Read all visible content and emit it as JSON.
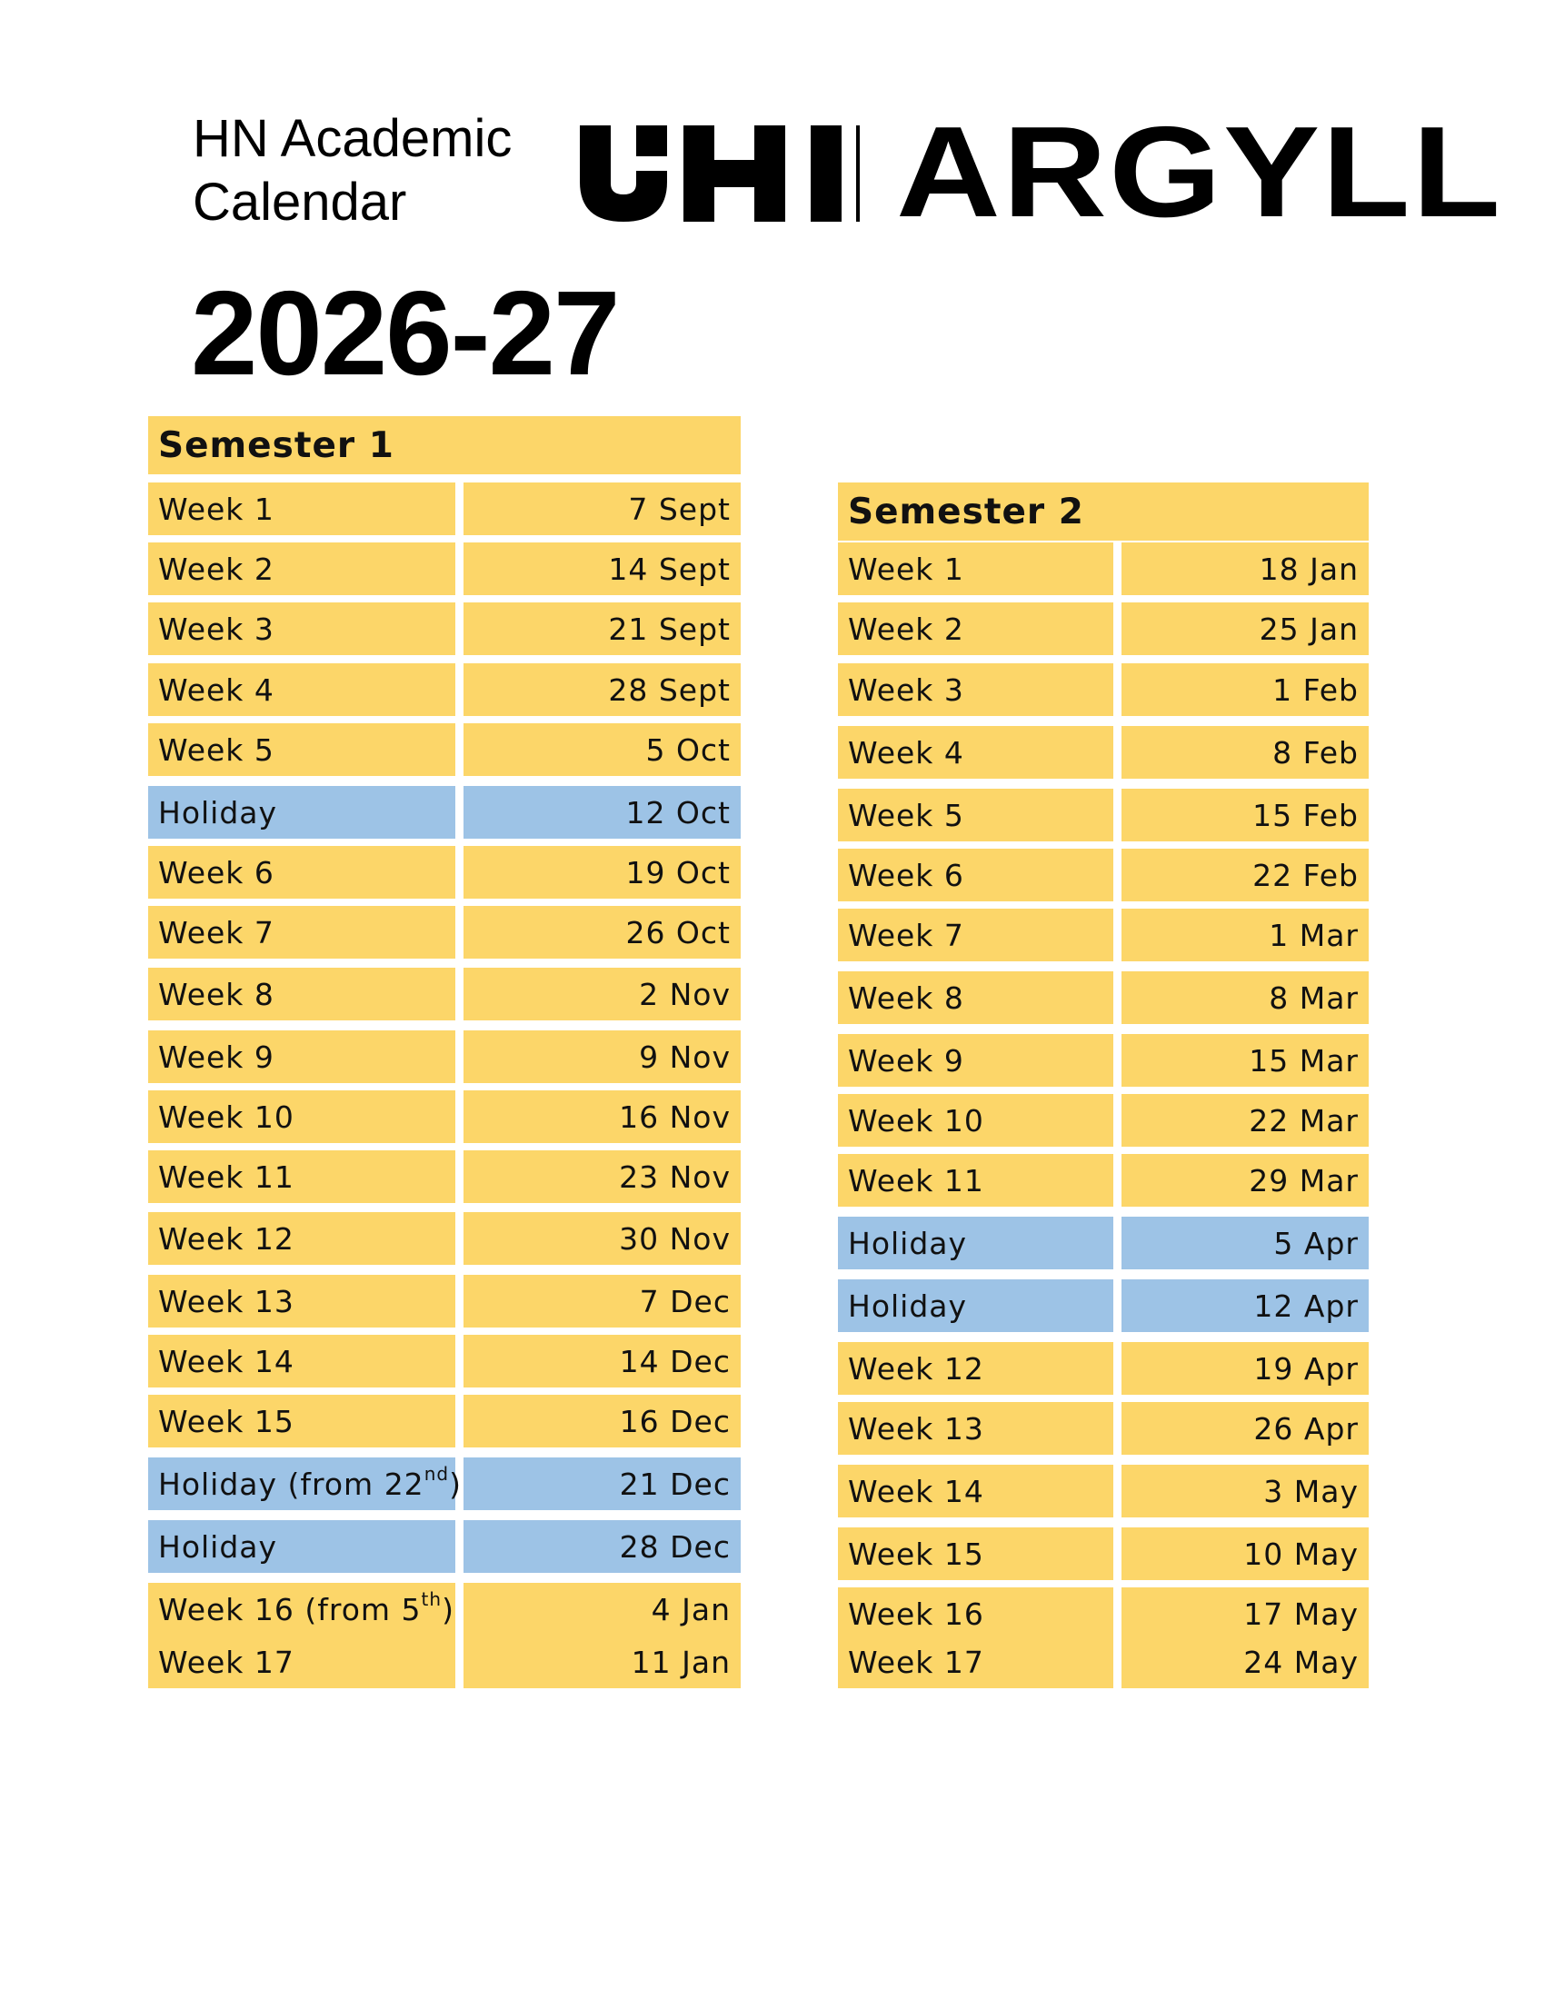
{
  "header": {
    "title_line1": "HN Academic",
    "title_line2": "Calendar",
    "year": "2026-27",
    "logo_text": "UHI | ARGYLL"
  },
  "colors": {
    "week": "#fcd669",
    "holiday": "#9dc3e6"
  },
  "semester1": {
    "title": "Semester 1",
    "rows": [
      {
        "label": "Week 1",
        "date": "7 Sept",
        "type": "week"
      },
      {
        "label": "Week 2",
        "date": "14 Sept",
        "type": "week"
      },
      {
        "label": "Week 3",
        "date": "21 Sept",
        "type": "week"
      },
      {
        "label": "Week 4",
        "date": "28 Sept",
        "type": "week"
      },
      {
        "label": "Week 5",
        "date": "5 Oct",
        "type": "week"
      },
      {
        "label": "Holiday",
        "date": "12 Oct",
        "type": "holiday"
      },
      {
        "label": "Week 6",
        "date": "19 Oct",
        "type": "week"
      },
      {
        "label": "Week 7",
        "date": "26 Oct",
        "type": "week"
      },
      {
        "label": "Week 8",
        "date": "2 Nov",
        "type": "week"
      },
      {
        "label": "Week 9",
        "date": "9 Nov",
        "type": "week"
      },
      {
        "label": "Week 10",
        "date": "16 Nov",
        "type": "week"
      },
      {
        "label": "Week 11",
        "date": "23 Nov",
        "type": "week"
      },
      {
        "label": "Week 12",
        "date": "30 Nov",
        "type": "week"
      },
      {
        "label": "Week 13",
        "date": "7 Dec",
        "type": "week"
      },
      {
        "label": "Week 14",
        "date": "14 Dec",
        "type": "week"
      },
      {
        "label": "Week 15",
        "date": "16 Dec",
        "type": "week"
      },
      {
        "label": "Holiday (from 22",
        "label_sup": "nd",
        "label_after": ")",
        "date": "21 Dec",
        "type": "holiday"
      },
      {
        "label": "Holiday",
        "date": "28 Dec",
        "type": "holiday"
      },
      {
        "label": "Week 16 (from 5",
        "label_sup": "th",
        "label_after": ")",
        "date": "4 Jan",
        "type": "week"
      },
      {
        "label": "Week 17",
        "date": "11 Jan",
        "type": "week"
      }
    ]
  },
  "semester2": {
    "title": "Semester 2",
    "rows": [
      {
        "label": "Week 1",
        "date": "18 Jan",
        "type": "week"
      },
      {
        "label": "Week 2",
        "date": "25 Jan",
        "type": "week"
      },
      {
        "label": "Week 3",
        "date": "1 Feb",
        "type": "week"
      },
      {
        "label": "Week 4",
        "date": "8 Feb",
        "type": "week"
      },
      {
        "label": "Week 5",
        "date": "15 Feb",
        "type": "week"
      },
      {
        "label": "Week 6",
        "date": "22 Feb",
        "type": "week"
      },
      {
        "label": "Week 7",
        "date": "1 Mar",
        "type": "week"
      },
      {
        "label": "Week 8",
        "date": "8 Mar",
        "type": "week"
      },
      {
        "label": "Week 9",
        "date": "15 Mar",
        "type": "week"
      },
      {
        "label": "Week 10",
        "date": "22 Mar",
        "type": "week"
      },
      {
        "label": "Week 11",
        "date": "29 Mar",
        "type": "week"
      },
      {
        "label": "Holiday",
        "date": "5 Apr",
        "type": "holiday"
      },
      {
        "label": "Holiday",
        "date": "12 Apr",
        "type": "holiday"
      },
      {
        "label": "Week 12",
        "date": "19 Apr",
        "type": "week"
      },
      {
        "label": "Week 13",
        "date": "26 Apr",
        "type": "week"
      },
      {
        "label": "Week 14",
        "date": "3 May",
        "type": "week"
      },
      {
        "label": "Week 15",
        "date": "10 May",
        "type": "week"
      },
      {
        "label": "Week 16",
        "date": "17 May",
        "type": "week"
      },
      {
        "label": "Week 17",
        "date": "24 May",
        "type": "week"
      }
    ]
  }
}
